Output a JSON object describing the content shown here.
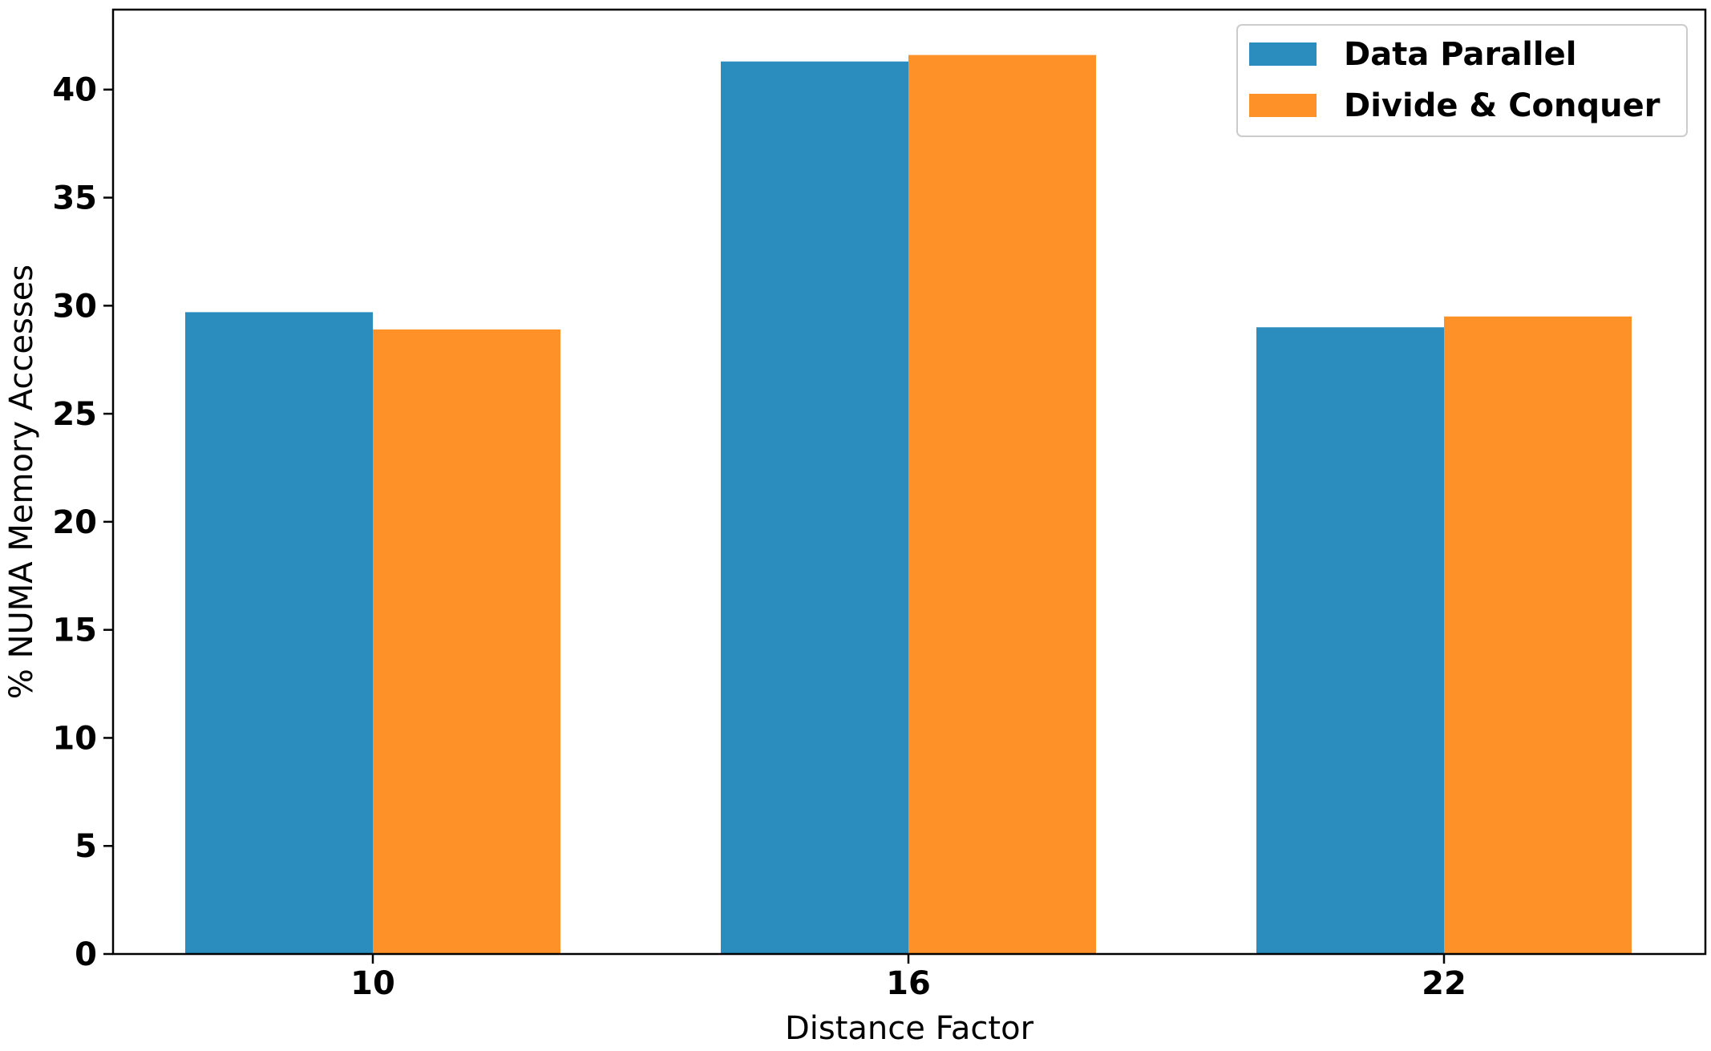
{
  "chart_data": {
    "type": "bar",
    "title": "",
    "xlabel": "Distance Factor",
    "ylabel": "% NUMA Memory Accesses",
    "categories": [
      "10",
      "16",
      "22"
    ],
    "series": [
      {
        "name": "Data Parallel",
        "color": "#2b8cbe",
        "values": [
          29.7,
          41.3,
          29.0
        ]
      },
      {
        "name": "Divide & Conquer",
        "color": "#fe9229",
        "values": [
          28.9,
          41.6,
          29.5
        ]
      }
    ],
    "ylim": [
      0,
      43.7
    ],
    "yticks": [
      0,
      5,
      10,
      15,
      20,
      25,
      30,
      35,
      40
    ],
    "grid": false,
    "legend_position": "top-right"
  }
}
